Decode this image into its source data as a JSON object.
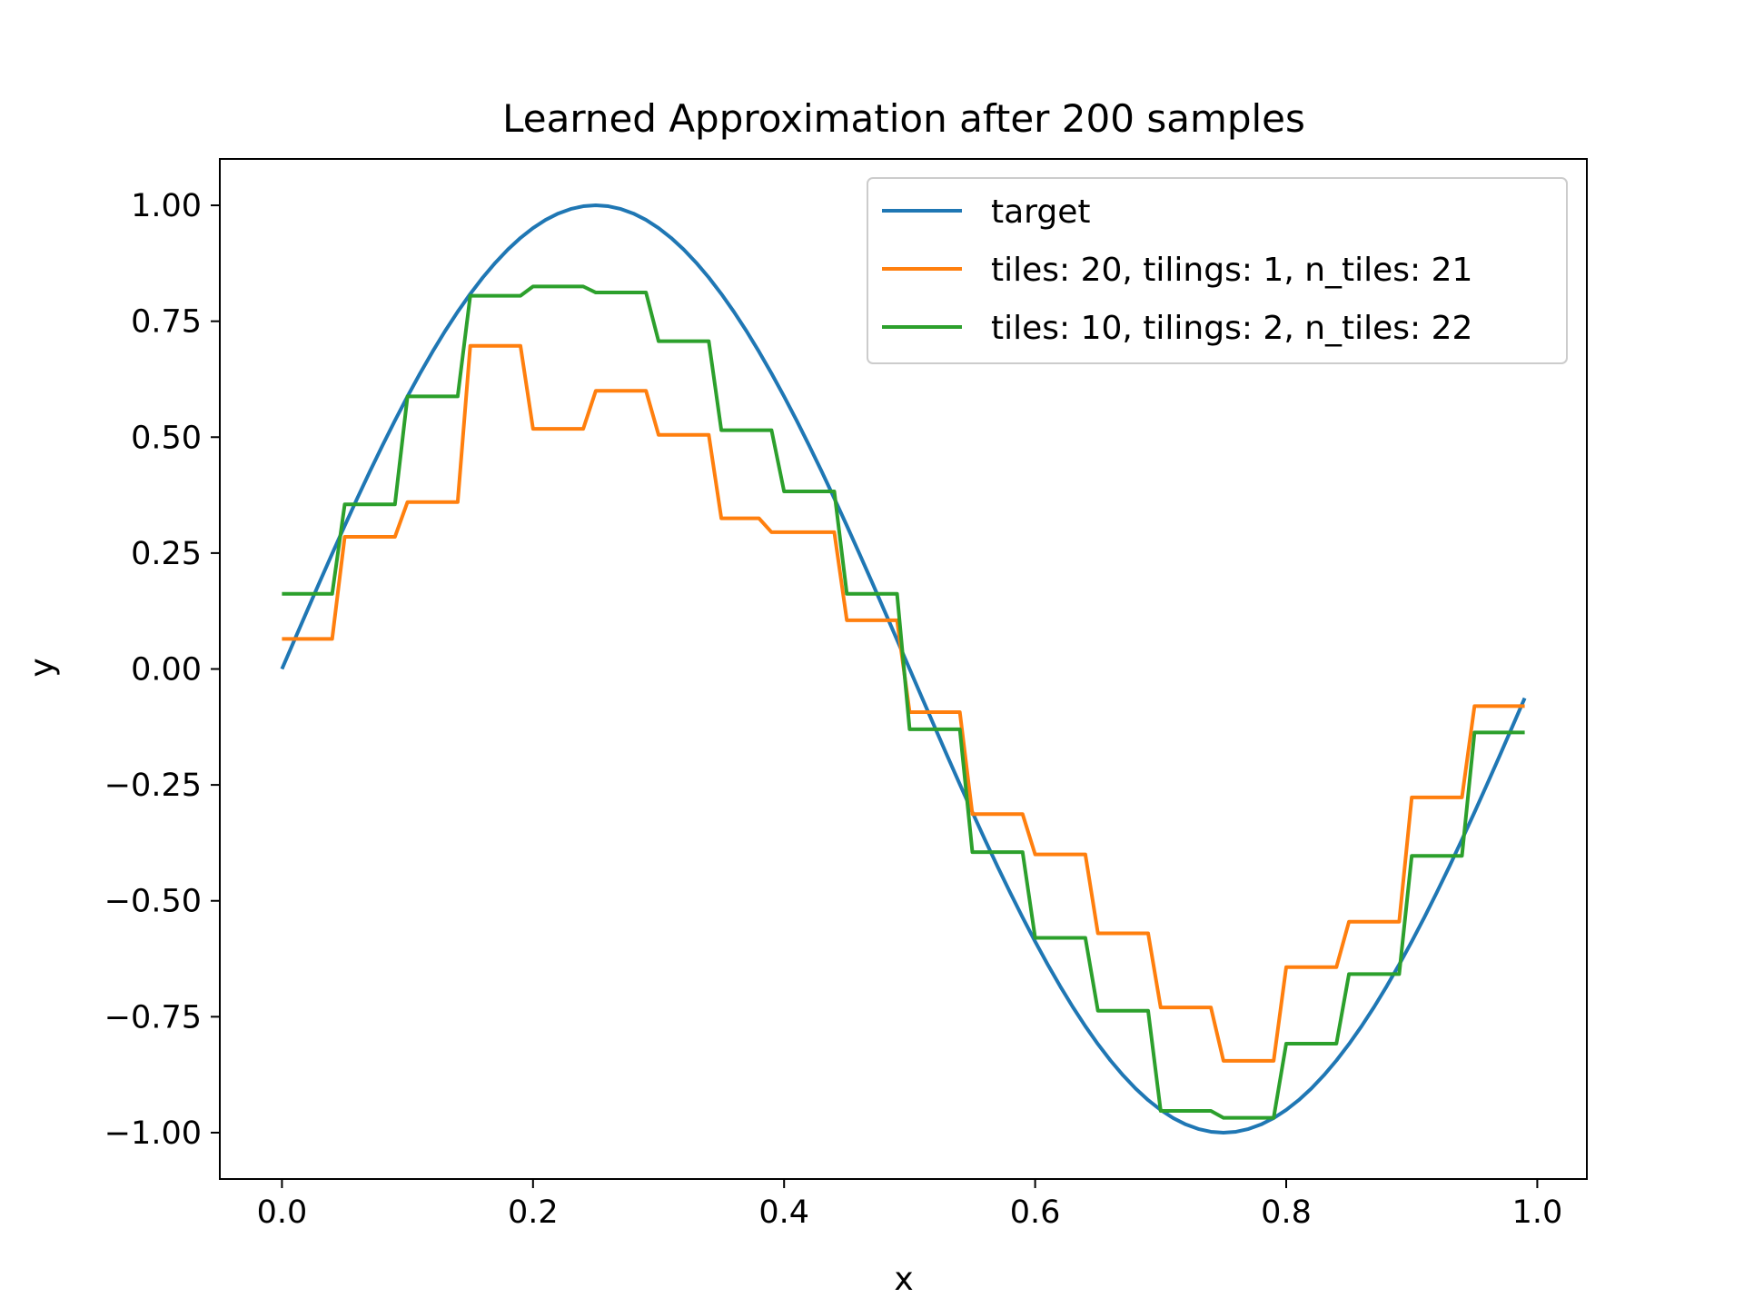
{
  "chart_data": {
    "type": "line",
    "title": "Learned Approximation after 200 samples",
    "xlabel": "x",
    "ylabel": "y",
    "xlim": [
      -0.0495,
      1.0395
    ],
    "ylim": [
      -1.1,
      1.1
    ],
    "xticks": [
      0.0,
      0.2,
      0.4,
      0.6,
      0.8,
      1.0
    ],
    "xtick_labels": [
      "0.0",
      "0.2",
      "0.4",
      "0.6",
      "0.8",
      "1.0"
    ],
    "yticks": [
      1.0,
      0.75,
      0.5,
      0.25,
      0.0,
      -0.25,
      -0.5,
      -0.75,
      -1.0
    ],
    "ytick_labels": [
      "1.00",
      "0.75",
      "0.50",
      "0.25",
      "0.00",
      "−0.25",
      "−0.50",
      "−0.75",
      "−1.00"
    ],
    "grid": false,
    "legend_position": "top-right",
    "series": [
      {
        "name": "target",
        "color": "#1f77b4",
        "function": "sin(2*pi*x)",
        "x_range": [
          0.0,
          0.99
        ],
        "step": 0.01
      },
      {
        "name": "tiles: 20, tilings: 1, n_tiles: 21",
        "color": "#ff7f0e",
        "step": 0.01,
        "x_range": [
          0.0,
          0.99
        ],
        "steps": [
          {
            "x0": 0.0,
            "x1": 0.04,
            "y": 0.065
          },
          {
            "x0": 0.05,
            "x1": 0.09,
            "y": 0.285
          },
          {
            "x0": 0.1,
            "x1": 0.14,
            "y": 0.36
          },
          {
            "x0": 0.15,
            "x1": 0.19,
            "y": 0.697
          },
          {
            "x0": 0.2,
            "x1": 0.24,
            "y": 0.518
          },
          {
            "x0": 0.25,
            "x1": 0.29,
            "y": 0.6
          },
          {
            "x0": 0.3,
            "x1": 0.34,
            "y": 0.505
          },
          {
            "x0": 0.35,
            "x1": 0.39,
            "y": 0.325
          },
          {
            "x0": 0.39,
            "x1": 0.44,
            "y": 0.295
          },
          {
            "x0": 0.45,
            "x1": 0.49,
            "y": 0.105
          },
          {
            "x0": 0.5,
            "x1": 0.54,
            "y": -0.093
          },
          {
            "x0": 0.55,
            "x1": 0.59,
            "y": -0.313
          },
          {
            "x0": 0.6,
            "x1": 0.64,
            "y": -0.4
          },
          {
            "x0": 0.65,
            "x1": 0.69,
            "y": -0.57
          },
          {
            "x0": 0.7,
            "x1": 0.74,
            "y": -0.73
          },
          {
            "x0": 0.75,
            "x1": 0.79,
            "y": -0.845
          },
          {
            "x0": 0.8,
            "x1": 0.84,
            "y": -0.643
          },
          {
            "x0": 0.85,
            "x1": 0.89,
            "y": -0.545
          },
          {
            "x0": 0.9,
            "x1": 0.94,
            "y": -0.277
          },
          {
            "x0": 0.95,
            "x1": 0.99,
            "y": -0.08
          }
        ]
      },
      {
        "name": "tiles: 10, tilings: 2, n_tiles: 22",
        "color": "#2ca02c",
        "step": 0.01,
        "x_range": [
          0.0,
          0.99
        ],
        "steps": [
          {
            "x0": 0.0,
            "x1": 0.04,
            "y": 0.162
          },
          {
            "x0": 0.05,
            "x1": 0.09,
            "y": 0.355
          },
          {
            "x0": 0.1,
            "x1": 0.14,
            "y": 0.588
          },
          {
            "x0": 0.15,
            "x1": 0.19,
            "y": 0.805
          },
          {
            "x0": 0.2,
            "x1": 0.24,
            "y": 0.825
          },
          {
            "x0": 0.25,
            "x1": 0.29,
            "y": 0.812
          },
          {
            "x0": 0.3,
            "x1": 0.34,
            "y": 0.707
          },
          {
            "x0": 0.35,
            "x1": 0.39,
            "y": 0.515
          },
          {
            "x0": 0.4,
            "x1": 0.44,
            "y": 0.383
          },
          {
            "x0": 0.45,
            "x1": 0.49,
            "y": 0.162
          },
          {
            "x0": 0.5,
            "x1": 0.54,
            "y": -0.13
          },
          {
            "x0": 0.55,
            "x1": 0.59,
            "y": -0.395
          },
          {
            "x0": 0.6,
            "x1": 0.64,
            "y": -0.58
          },
          {
            "x0": 0.65,
            "x1": 0.69,
            "y": -0.737
          },
          {
            "x0": 0.7,
            "x1": 0.74,
            "y": -0.953
          },
          {
            "x0": 0.75,
            "x1": 0.79,
            "y": -0.968
          },
          {
            "x0": 0.8,
            "x1": 0.84,
            "y": -0.808
          },
          {
            "x0": 0.85,
            "x1": 0.89,
            "y": -0.658
          },
          {
            "x0": 0.9,
            "x1": 0.94,
            "y": -0.403
          },
          {
            "x0": 0.95,
            "x1": 0.99,
            "y": -0.137
          }
        ]
      }
    ]
  }
}
